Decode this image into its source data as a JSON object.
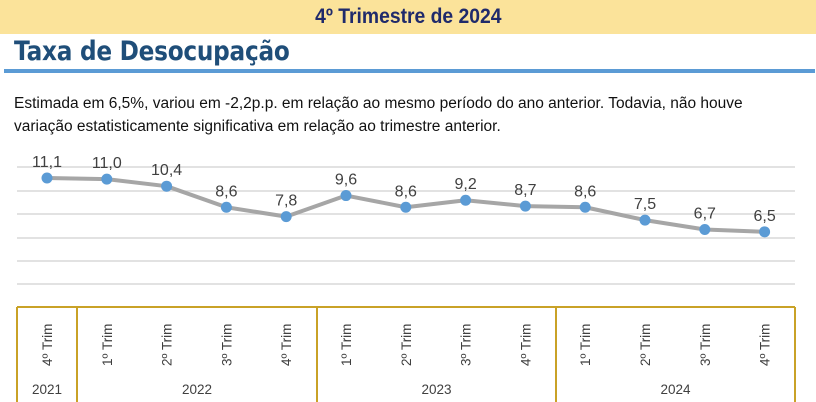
{
  "header": {
    "banner": "4º Trimestre de 2024",
    "title": "Taxa de Desocupação"
  },
  "description": "Estimada em 6,5%, variou em -2,2p.p. em relação ao mesmo período do ano anterior. Todavia, não houve variação estatisticamente significativa em relação ao trimestre anterior.",
  "colors": {
    "banner_bg": "#fbe39a",
    "banner_text": "#1f2a6b",
    "title": "#1f4e79",
    "rule": "#5b9bd5",
    "line": "#a6a6a6",
    "marker": "#5b9bd5",
    "axis_box": "#c9a227",
    "gridline": "#d9d9d9"
  },
  "chart_data": {
    "type": "line",
    "title": "Taxa de Desocupação",
    "xlabel": "",
    "ylabel": "",
    "categories": [
      "4º Trim",
      "1º Trim",
      "2º Trim",
      "3º Trim",
      "4º Trim",
      "1º Trim",
      "2º Trim",
      "3º Trim",
      "4º Trim",
      "1º Trim",
      "2º Trim",
      "3º Trim",
      "4º Trim"
    ],
    "category_groups": [
      {
        "label": "2021",
        "span": 1
      },
      {
        "label": "2022",
        "span": 4
      },
      {
        "label": "2023",
        "span": 4
      },
      {
        "label": "2024",
        "span": 4
      }
    ],
    "series": [
      {
        "name": "Taxa de Desocupação (%)",
        "values": [
          11.1,
          11.0,
          10.4,
          8.6,
          7.8,
          9.6,
          8.6,
          9.2,
          8.7,
          8.6,
          7.5,
          6.7,
          6.5
        ]
      }
    ],
    "value_labels": [
      "11,1",
      "11,0",
      "10,4",
      "8,6",
      "7,8",
      "9,6",
      "8,6",
      "9,2",
      "8,7",
      "8,6",
      "7,5",
      "6,7",
      "6,5"
    ],
    "grid": true,
    "legend": "none"
  }
}
